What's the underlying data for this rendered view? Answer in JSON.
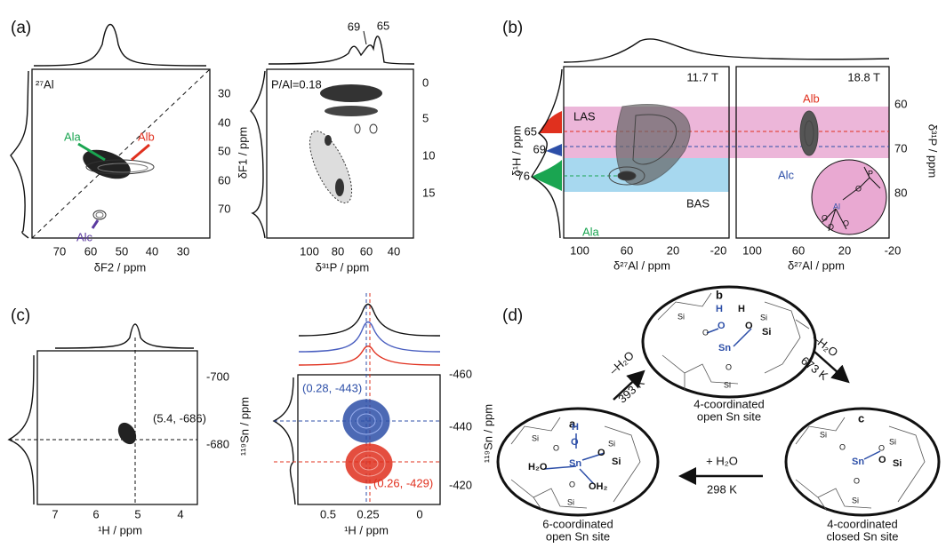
{
  "panel_a": {
    "label": "(a)",
    "left": {
      "nucleus": "²⁷Al",
      "y_label": "δF1 / ppm",
      "x_label": "δF2 / ppm",
      "x_ticks": [
        70,
        60,
        50,
        40,
        30
      ],
      "y_ticks": [
        30,
        40,
        50,
        60,
        70
      ],
      "sites": [
        "Ala",
        "Alb",
        "Alc"
      ]
    },
    "right": {
      "ratio": "P/Al=0.18",
      "x_label": "δ³¹P / ppm",
      "x_ticks": [
        100,
        80,
        60,
        40
      ],
      "y_ticks": [
        0,
        5,
        10,
        15
      ],
      "peaks": [
        69,
        65
      ]
    }
  },
  "panel_b": {
    "label": "(b)",
    "y_label": "δ¹H / ppm",
    "y_ticks": [
      65,
      69,
      76
    ],
    "fields": [
      "11.7 T",
      "18.8 T"
    ],
    "regions": [
      "LAS",
      "BAS"
    ],
    "sites": [
      "Ala",
      "Alb",
      "Alc"
    ],
    "x_label": "δ²⁷Al / ppm",
    "x_ticks": [
      100,
      60,
      20,
      -20
    ],
    "y2_label": "δ³¹P / ppm",
    "y2_ticks": [
      60,
      70,
      80
    ],
    "inset_atoms": [
      "Al",
      "O",
      "O",
      "O",
      "O",
      "P"
    ]
  },
  "panel_c": {
    "label": "(c)",
    "left": {
      "y_label": "¹¹⁹Sn / ppm",
      "y_ticks": [
        -700,
        -680
      ],
      "x_label": "¹H / ppm",
      "x_ticks": [
        7,
        6,
        5,
        4
      ],
      "point": "(5.4, -686)"
    },
    "right": {
      "y_ticks": [
        -460,
        -440,
        -420
      ],
      "x_ticks": [
        0.5,
        0.25,
        0
      ],
      "points": [
        "(0.28, -443)",
        "(0.26, -429)"
      ]
    }
  },
  "panel_d": {
    "label": "(d)",
    "structures": [
      {
        "id": "a",
        "caption": [
          "6-coordinated",
          "open Sn site"
        ],
        "atoms": [
          "H",
          "O",
          "Sn",
          "H₂O",
          "OH₂",
          "O",
          "Si",
          "O",
          "Si",
          "Si",
          "O",
          "Si"
        ]
      },
      {
        "id": "b",
        "caption": [
          "4-coordinated",
          "open Sn site"
        ],
        "atoms": [
          "H",
          "O",
          "Sn",
          "H",
          "O",
          "Si",
          "Si",
          "O",
          "Si",
          "O",
          "Si"
        ]
      },
      {
        "id": "c",
        "caption": [
          "4-coordinated",
          "closed Sn site"
        ],
        "atoms": [
          "Sn",
          "O",
          "Si",
          "O",
          "Si",
          "O",
          "Si",
          "O",
          "Si"
        ]
      }
    ],
    "steps": [
      [
        "–H₂O",
        "393 K"
      ],
      [
        "–H₂O",
        "673 K"
      ],
      [
        "+ H₂O",
        "298 K"
      ]
    ]
  }
}
